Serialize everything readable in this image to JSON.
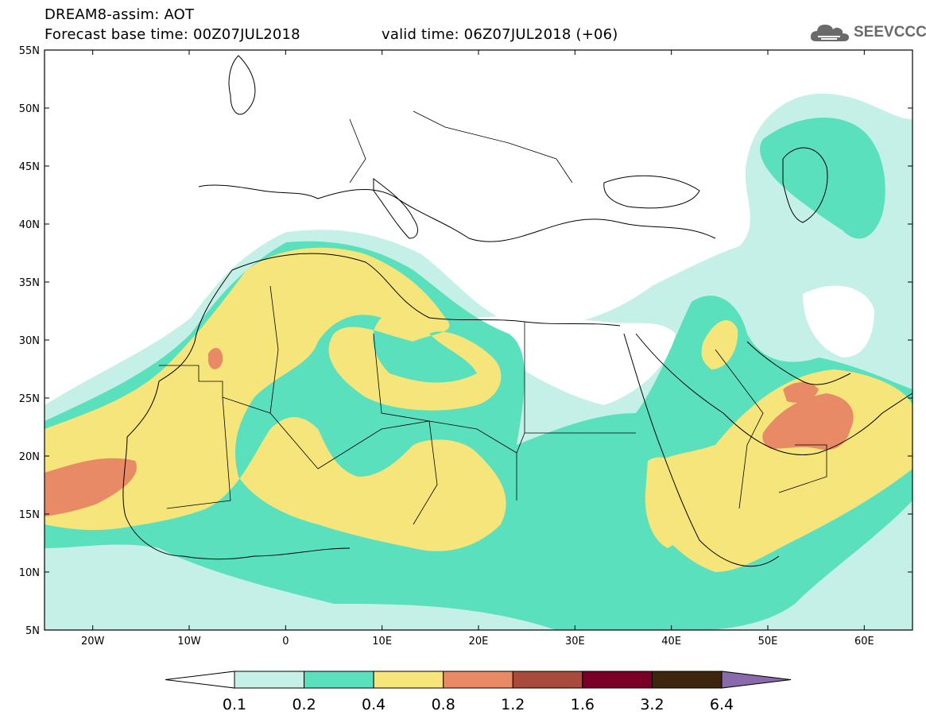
{
  "header": {
    "title": "DREAM8-assim: AOT",
    "base_time": "Forecast base time: 00Z07JUL2018",
    "valid_time": "valid time: 06Z07JUL2018 (+06)"
  },
  "logo": {
    "text": "SEEVCCC",
    "icon": "cloud-icon",
    "color": "#6a6a6a"
  },
  "map": {
    "lat_labels": [
      "55N",
      "50N",
      "45N",
      "40N",
      "35N",
      "30N",
      "25N",
      "20N",
      "15N",
      "10N",
      "5N"
    ],
    "lon_labels": [
      "20W",
      "10W",
      "0",
      "10E",
      "20E",
      "30E",
      "40E",
      "50E",
      "60E"
    ]
  },
  "colorbar": {
    "labels": [
      "0.1",
      "0.2",
      "0.4",
      "0.8",
      "1.2",
      "1.6",
      "3.2",
      "6.4"
    ],
    "colors": [
      "#ffffff",
      "#c4f0e8",
      "#5be0bd",
      "#f6e57a",
      "#e88a65",
      "#a84a3c",
      "#7a0028",
      "#3d2510",
      "#8a6aaa"
    ]
  }
}
